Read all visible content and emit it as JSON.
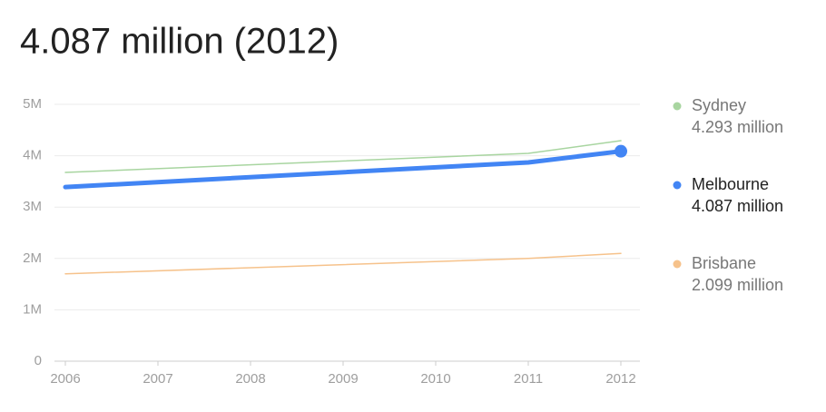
{
  "chart_data": {
    "type": "line",
    "title": "4.087 million (2012)",
    "x": [
      2006,
      2011,
      2012
    ],
    "xlim": [
      2006,
      2012
    ],
    "xticks": [
      2006,
      2007,
      2008,
      2009,
      2010,
      2011,
      2012
    ],
    "ylim": [
      0,
      5000000
    ],
    "yticks": [
      0,
      {
        "value": 1000000,
        "label": "1M"
      },
      {
        "value": 2000000,
        "label": "2M"
      },
      {
        "value": 3000000,
        "label": "3M"
      },
      {
        "value": 4000000,
        "label": "4M"
      },
      {
        "value": 5000000,
        "label": "5M"
      }
    ],
    "grid": true,
    "highlighted_series": "Melbourne",
    "series": [
      {
        "name": "Sydney",
        "color": "#a8d5a0",
        "values": [
          3675000,
          4046000,
          4293000
        ],
        "value_labels": [
          null,
          null,
          "4.293 million"
        ]
      },
      {
        "name": "Melbourne",
        "color": "#4285f4",
        "values": [
          3390000,
          3870000,
          4087000
        ],
        "value_labels": [
          null,
          null,
          "4.087 million"
        ]
      },
      {
        "name": "Brisbane",
        "color": "#f6c28b",
        "values": [
          1700000,
          2000000,
          2099000
        ],
        "value_labels": [
          null,
          null,
          "2.099 million"
        ]
      }
    ]
  }
}
